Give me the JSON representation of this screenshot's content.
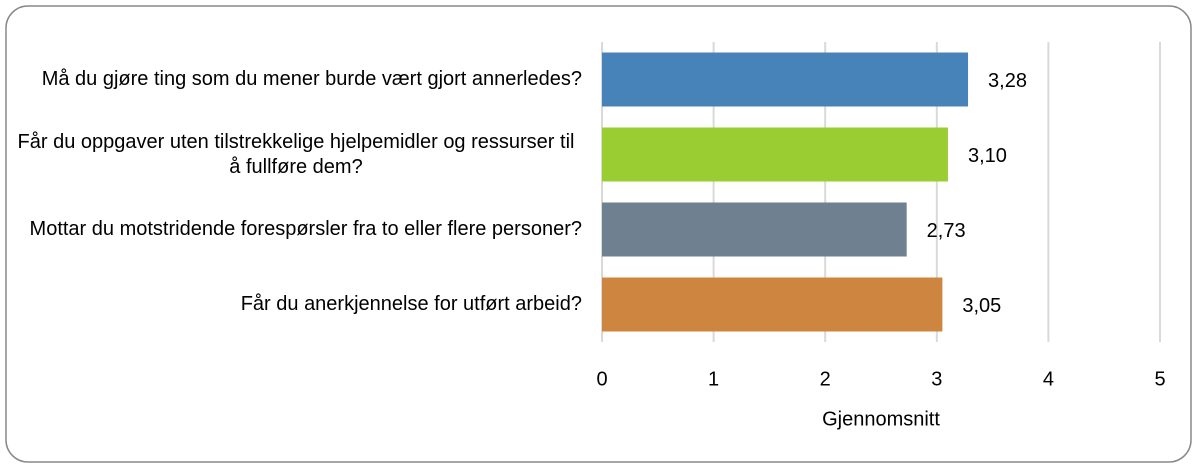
{
  "chart_data": {
    "type": "barh",
    "categories": [
      "Må du gjøre ting som du mener burde vært gjort annerledes?",
      "Får du oppgaver uten tilstrekkelige hjelpemidler og ressurser til å fullføre dem?",
      "Mottar du motstridende forespørsler fra to eller flere personer?",
      "Får du anerkjennelse for utført arbeid?"
    ],
    "values": [
      3.28,
      3.1,
      2.73,
      3.05
    ],
    "value_labels": [
      "3,28",
      "3,10",
      "2,73",
      "3,05"
    ],
    "colors": [
      "#4783b8",
      "#9acd32",
      "#6f8090",
      "#cd853f"
    ],
    "xlabel": "Gjennomsnitt",
    "xlim": [
      0,
      5
    ],
    "xticks": [
      0,
      1,
      2,
      3,
      4,
      5
    ],
    "grid": true
  }
}
